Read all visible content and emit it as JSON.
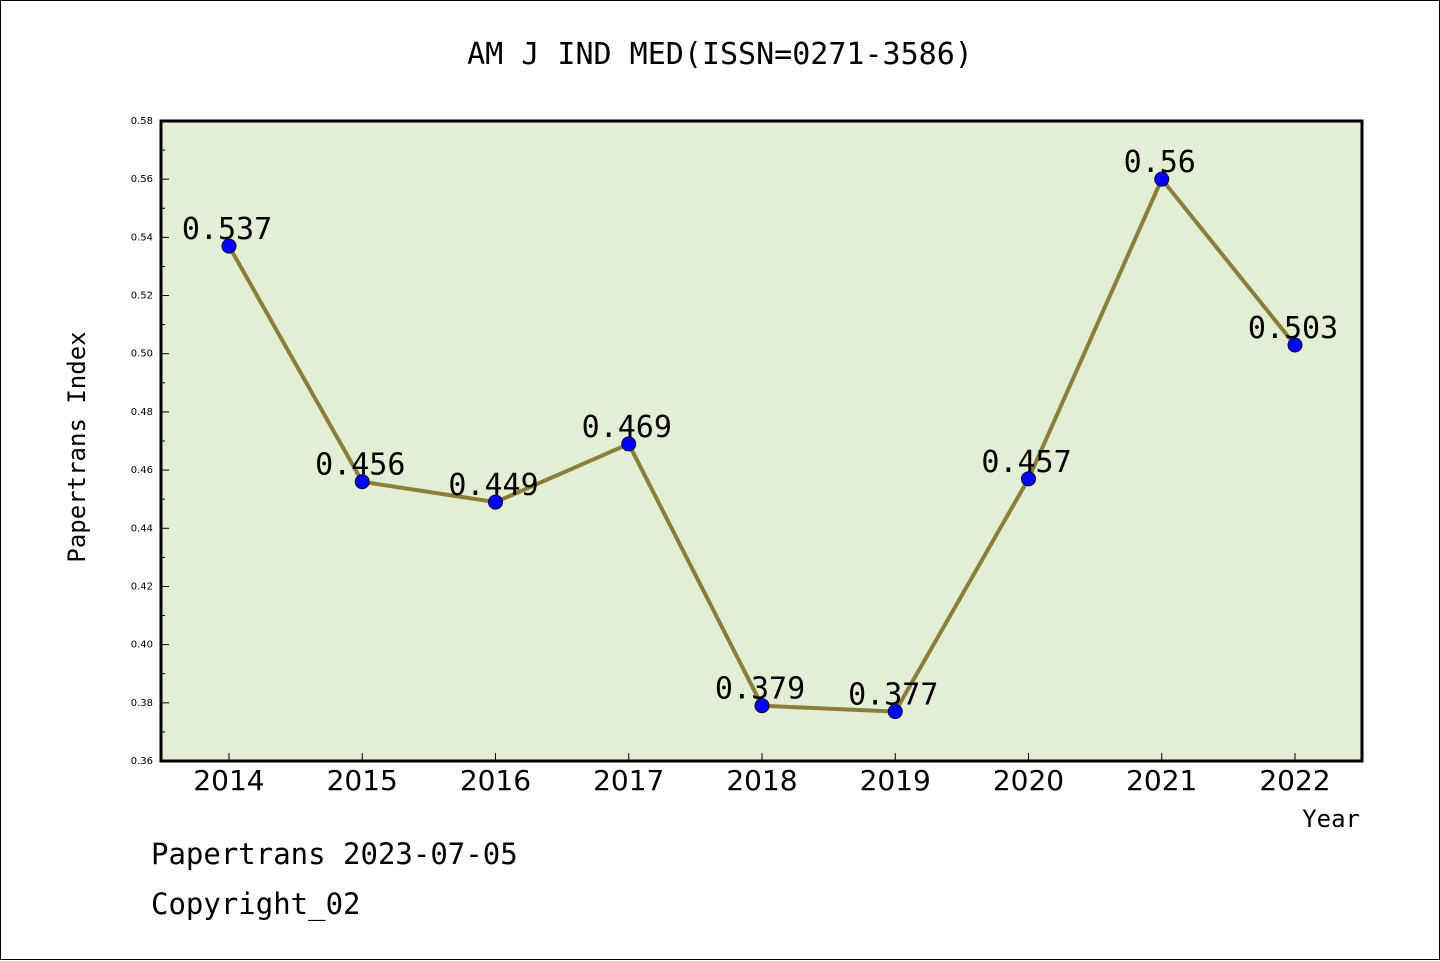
{
  "chart_data": {
    "type": "line",
    "title": "AM J IND MED(ISSN=0271-3586)",
    "xlabel": "Year",
    "ylabel": "Papertrans Index",
    "categories": [
      "2014",
      "2015",
      "2016",
      "2017",
      "2018",
      "2019",
      "2020",
      "2021",
      "2022"
    ],
    "values": [
      0.537,
      0.456,
      0.449,
      0.469,
      0.379,
      0.377,
      0.457,
      0.56,
      0.503
    ],
    "data_labels": [
      "0.537",
      "0.456",
      "0.449",
      "0.469",
      "0.379",
      "0.377",
      "0.457",
      "0.56",
      "0.503"
    ],
    "ylim": [
      0.36,
      0.58
    ],
    "yticks": [
      "0.36",
      "0.38",
      "0.40",
      "0.42",
      "0.44",
      "0.46",
      "0.48",
      "0.50",
      "0.52",
      "0.54",
      "0.56",
      "0.58"
    ],
    "colors": {
      "plot_background": "#e2efd5",
      "line": "#8b7d3a",
      "marker": "#0000ff"
    },
    "grid": false,
    "legend": "none"
  },
  "footer": {
    "date_text": "Papertrans 2023-07-05",
    "copyright_text": "Copyright_02"
  }
}
